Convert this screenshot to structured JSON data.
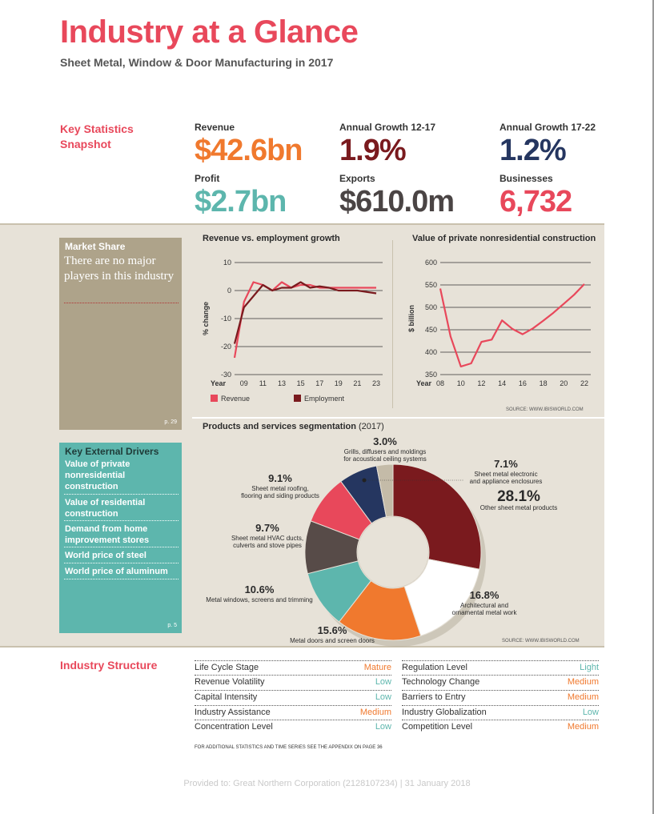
{
  "header": {
    "title": "Industry at a Glance",
    "subtitle": "Sheet Metal, Window & Door Manufacturing in 2017"
  },
  "key_stats": {
    "heading": "Key Statistics Snapshot",
    "items": [
      {
        "label": "Revenue",
        "value": "$42.6bn",
        "color": "#f0792e"
      },
      {
        "label": "Annual Growth 12-17",
        "value": "1.9%",
        "color": "#7a1a1e"
      },
      {
        "label": "Annual Growth 17-22",
        "value": "1.2%",
        "color": "#253660"
      },
      {
        "label": "Profit",
        "value": "$2.7bn",
        "color": "#5db6ad"
      },
      {
        "label": "Exports",
        "value": "$610.0m",
        "color": "#4a4444"
      },
      {
        "label": "Businesses",
        "value": "6,732",
        "color": "#e8485b"
      }
    ]
  },
  "market_share": {
    "heading": "Market Share",
    "text": "There are no major players in this industry",
    "page": "p. 29"
  },
  "external_drivers": {
    "heading": "Key External Drivers",
    "items": [
      "Value of private nonresidential construction",
      "Value of residential construction",
      "Demand from home improvement stores",
      "World price of steel",
      "World price of aluminum"
    ],
    "page": "p. 5"
  },
  "chart_data": [
    {
      "type": "line",
      "title": "Revenue vs. employment growth",
      "ylabel": "% change",
      "xlabel": "Year",
      "ylim": [
        -30,
        10
      ],
      "yticks": [
        10,
        0,
        -10,
        -20,
        -30
      ],
      "xticks": [
        9,
        11,
        13,
        15,
        17,
        19,
        21,
        23
      ],
      "xtick_labels": [
        "09",
        "11",
        "13",
        "15",
        "17",
        "19",
        "21",
        "23"
      ],
      "x": [
        8,
        9,
        10,
        11,
        12,
        13,
        14,
        15,
        16,
        17,
        18,
        19,
        20,
        21,
        22,
        23
      ],
      "series": [
        {
          "name": "Revenue",
          "color": "#e8485b",
          "values": [
            -24,
            -4,
            3,
            2,
            0,
            3,
            1,
            2,
            2,
            1,
            1,
            1,
            1,
            1,
            1,
            1
          ]
        },
        {
          "name": "Employment",
          "color": "#7a1a1e",
          "values": [
            -19,
            -6,
            -2,
            2,
            0,
            1,
            1,
            3,
            1,
            1.5,
            1,
            0,
            0,
            0,
            -0.5,
            -1
          ]
        }
      ],
      "legend": "bottom-left"
    },
    {
      "type": "line",
      "title": "Value of private nonresidential construction",
      "ylabel": "$ billion",
      "xlabel": "Year",
      "ylim": [
        350,
        600
      ],
      "yticks": [
        600,
        550,
        500,
        450,
        400,
        350
      ],
      "xticks": [
        8,
        10,
        12,
        14,
        16,
        18,
        20,
        22
      ],
      "xtick_labels": [
        "08",
        "10",
        "12",
        "14",
        "16",
        "18",
        "20",
        "22"
      ],
      "x": [
        8,
        9,
        10,
        11,
        12,
        13,
        14,
        15,
        16,
        17,
        18,
        19,
        20,
        21,
        22
      ],
      "series": [
        {
          "color": "#e8485b",
          "values": [
            542,
            435,
            368,
            375,
            423,
            428,
            471,
            452,
            440,
            453,
            470,
            488,
            508,
            528,
            552
          ]
        }
      ],
      "source": "SOURCE: WWW.IBISWORLD.COM"
    },
    {
      "type": "pie",
      "title": "Products and services segmentation",
      "title_year": "(2017)",
      "categories": [
        "Other sheet metal products",
        "Architectural and ornamental metal work",
        "Metal doors and screen doors",
        "Metal windows, screens and trimming",
        "Sheet metal HVAC ducts, culverts and stove pipes",
        "Sheet metal roofing, flooring and siding products",
        "Sheet metal electronic and appliance enclosures",
        "Grills, diffusers and moldings for acoustical ceiling systems"
      ],
      "values": [
        28.1,
        16.8,
        15.6,
        10.6,
        9.7,
        9.1,
        7.1,
        3.0
      ],
      "labels": [
        "28.1%",
        "16.8%",
        "15.6%",
        "10.6%",
        "9.7%",
        "9.1%",
        "7.1%",
        "3.0%"
      ],
      "colors": [
        "#7a1a1e",
        "#ffffff",
        "#f0792e",
        "#5db6ad",
        "#574b48",
        "#e8485b",
        "#253660",
        "#c4bba8"
      ],
      "source": "SOURCE: WWW.IBISWORLD.COM"
    }
  ],
  "industry_structure": {
    "heading": "Industry Structure",
    "left": [
      {
        "name": "Life Cycle Stage",
        "value": "Mature",
        "color": "#f0792e"
      },
      {
        "name": "Revenue Volatility",
        "value": "Low",
        "color": "#5db6ad"
      },
      {
        "name": "Capital Intensity",
        "value": "Low",
        "color": "#5db6ad"
      },
      {
        "name": "Industry Assistance",
        "value": "Medium",
        "color": "#f0792e"
      },
      {
        "name": "Concentration Level",
        "value": "Low",
        "color": "#5db6ad"
      }
    ],
    "right": [
      {
        "name": "Regulation Level",
        "value": "Light",
        "color": "#5db6ad"
      },
      {
        "name": "Technology Change",
        "value": "Medium",
        "color": "#f0792e"
      },
      {
        "name": "Barriers to Entry",
        "value": "Medium",
        "color": "#f0792e"
      },
      {
        "name": "Industry Globalization",
        "value": "Low",
        "color": "#5db6ad"
      },
      {
        "name": "Competition Level",
        "value": "Medium",
        "color": "#f0792e"
      }
    ],
    "note": "FOR ADDITIONAL STATISTICS AND TIME SERIES SEE THE APPENDIX ON PAGE 36"
  },
  "footer": "Provided to: Great Northern Corporation (2128107234) | 31 January 2018"
}
